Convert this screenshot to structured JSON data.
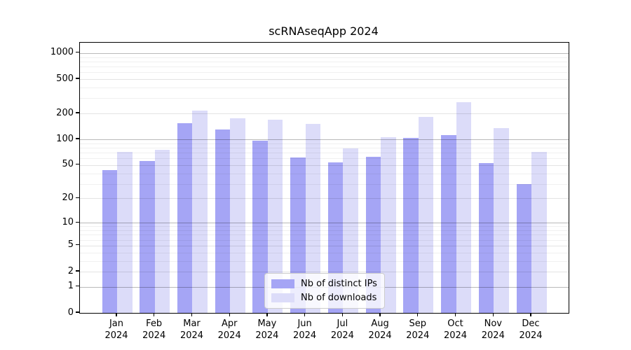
{
  "chart_data": {
    "type": "bar",
    "title": "scRNAseqApp 2024",
    "y_scale": "log10(value+1)",
    "grid": "on",
    "categories": [
      "Jan",
      "Feb",
      "Mar",
      "Apr",
      "May",
      "Jun",
      "Jul",
      "Aug",
      "Sep",
      "Oct",
      "Nov",
      "Dec"
    ],
    "category_year": "2024",
    "y_ticks": [
      0,
      1,
      2,
      5,
      10,
      20,
      50,
      100,
      200,
      500,
      1000
    ],
    "ylim": [
      0,
      1150
    ],
    "series": [
      {
        "name": "Nb of distinct IPs",
        "color": "#a5a5f5",
        "values": [
          44,
          56,
          154,
          130,
          96,
          61,
          54,
          62,
          104,
          112,
          53,
          30
        ]
      },
      {
        "name": "Nb of downloads",
        "color": "#dcdcf9",
        "values": [
          71,
          76,
          215,
          176,
          171,
          151,
          79,
          106,
          184,
          273,
          136,
          71
        ]
      }
    ],
    "legend": {
      "position": "bottom-center-inside",
      "entries": [
        "Nb of distinct IPs",
        "Nb of downloads"
      ]
    }
  }
}
